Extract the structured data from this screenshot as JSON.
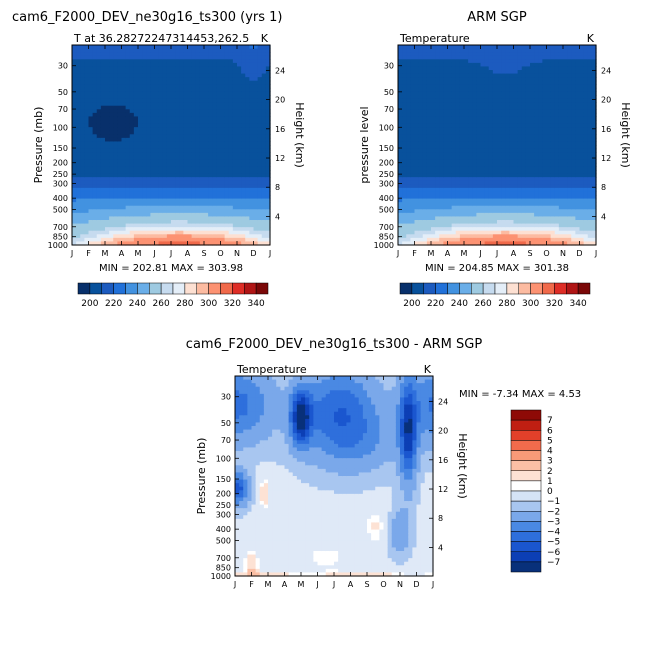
{
  "chart_data": [
    {
      "type": "heatmap",
      "title": "cam6_F2000_DEV_ne30g16_ts300 (yrs 1)",
      "subtitle": "T at 36.28272247314453,262.5",
      "units_label": "K",
      "ylabel": "Pressure (mb)",
      "ylabel_right": "Height (km)",
      "months": [
        "J",
        "F",
        "M",
        "A",
        "M",
        "J",
        "J",
        "A",
        "S",
        "O",
        "N",
        "D",
        "J"
      ],
      "pressure_ticks": [
        "30",
        "50",
        "70",
        "100",
        "150",
        "200",
        "250",
        "300",
        "400",
        "500",
        "700",
        "850",
        "1000"
      ],
      "height_ticks": [
        "24",
        "20",
        "16",
        "12",
        "8",
        "4"
      ],
      "stats": "MIN = 202.81  MAX = 303.98",
      "colorbar_labels": [
        "200",
        "220",
        "240",
        "260",
        "280",
        "300",
        "320",
        "340"
      ]
    },
    {
      "type": "heatmap",
      "title": "ARM SGP",
      "subtitle": "Temperature",
      "units_label": "K",
      "ylabel": "pressure level",
      "ylabel_right": "Height (km)",
      "months": [
        "J",
        "F",
        "M",
        "A",
        "M",
        "J",
        "J",
        "A",
        "S",
        "O",
        "N",
        "D",
        "J"
      ],
      "pressure_ticks": [
        "30",
        "50",
        "70",
        "100",
        "150",
        "200",
        "250",
        "300",
        "400",
        "500",
        "700",
        "850",
        "1000"
      ],
      "height_ticks": [
        "24",
        "20",
        "16",
        "12",
        "8",
        "4"
      ],
      "stats": "MIN = 204.85  MAX = 301.38",
      "colorbar_labels": [
        "200",
        "220",
        "240",
        "260",
        "280",
        "300",
        "320",
        "340"
      ]
    },
    {
      "type": "heatmap",
      "title": "cam6_F2000_DEV_ne30g16_ts300 - ARM SGP",
      "subtitle": "Temperature",
      "units_label": "K",
      "ylabel": "Pressure (mb)",
      "ylabel_right": "Height (km)",
      "months": [
        "J",
        "F",
        "M",
        "A",
        "M",
        "J",
        "J",
        "A",
        "S",
        "O",
        "N",
        "D",
        "J"
      ],
      "pressure_ticks": [
        "30",
        "50",
        "70",
        "100",
        "150",
        "200",
        "250",
        "300",
        "400",
        "500",
        "700",
        "850",
        "1000"
      ],
      "height_ticks": [
        "24",
        "20",
        "16",
        "12",
        "8",
        "4"
      ],
      "stats": "MIN =   -7.34 MAX =    4.53",
      "colorbar_labels": [
        "7",
        "6",
        "5",
        "4",
        "3",
        "2",
        "1",
        "0",
        "-1",
        "-2",
        "-3",
        "-4",
        "-5",
        "-6",
        "-7"
      ]
    }
  ],
  "colors": {
    "temp_scale": [
      "#08306b",
      "#08519c",
      "#1c5bbf",
      "#2171d9",
      "#4292e0",
      "#6aaee8",
      "#9ecae1",
      "#c6dbef",
      "#e4eef8",
      "#fde0d2",
      "#fcbba1",
      "#fc9272",
      "#f0694a",
      "#de2d26",
      "#b01515",
      "#7a0808"
    ],
    "diff_scale": [
      "#08307a",
      "#0c3fb5",
      "#1a56cf",
      "#2e6fdc",
      "#4a89e3",
      "#7aa8ea",
      "#a8c6f0",
      "#d5e3f6",
      "#ffffff",
      "#fde2d4",
      "#fbbfa5",
      "#f89a78",
      "#f26b4c",
      "#e3402a",
      "#c01f12",
      "#8e0a06"
    ]
  }
}
